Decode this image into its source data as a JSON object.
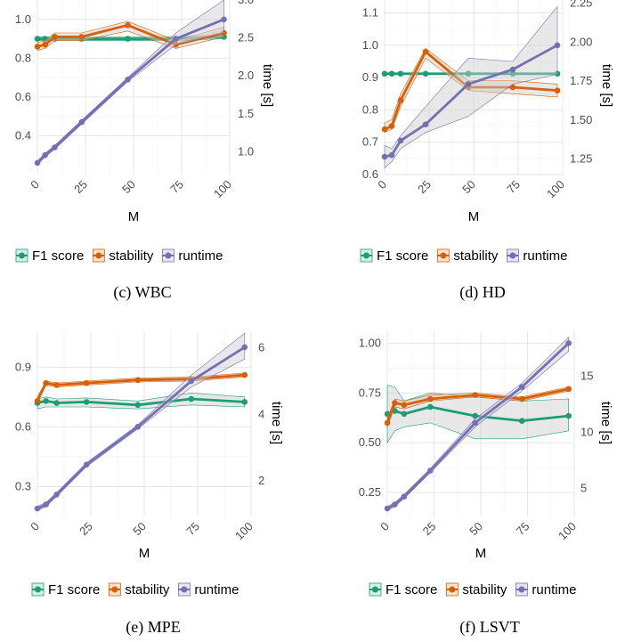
{
  "colors": {
    "f1": "#1b9e77",
    "stability": "#d95f02",
    "runtime": "#7570b3",
    "grid_major": "#e6e6e6",
    "grid_minor": "#f2f2f2",
    "band_fill": "#cccccc"
  },
  "chart_data": [
    {
      "type": "line",
      "caption": "(c) WBC",
      "xlabel": "M",
      "ylabel_right": "time [s]",
      "x_ticks": [
        0,
        25,
        50,
        75,
        100
      ],
      "y_left_ticks": [
        0.4,
        0.6,
        0.8,
        1.0
      ],
      "y_left_tick_labels": [
        "0.4",
        "0.6",
        "0.8",
        "1.0"
      ],
      "y_right_ticks": [
        1.0,
        1.5,
        2.0,
        2.5,
        3.0
      ],
      "y_right_tick_labels": [
        "1.0",
        "1.5",
        "2.0",
        "2.5",
        "3.0"
      ],
      "ylim_left": [
        0.2,
        1.1
      ],
      "ylim_right": [
        0.7,
        3.0
      ],
      "xlim": [
        0,
        100
      ],
      "x": [
        0,
        4,
        9,
        23,
        47,
        72,
        97
      ],
      "series": [
        {
          "name": "F1 score",
          "key": "f1",
          "values": [
            0.9,
            0.9,
            0.9,
            0.9,
            0.9,
            0.9,
            0.91
          ],
          "lower": [
            0.89,
            0.89,
            0.89,
            0.89,
            0.89,
            0.89,
            0.9
          ],
          "upper": [
            0.91,
            0.91,
            0.91,
            0.91,
            0.91,
            0.91,
            0.92
          ]
        },
        {
          "name": "stability",
          "key": "stability",
          "values": [
            0.86,
            0.87,
            0.91,
            0.91,
            0.97,
            0.87,
            0.93
          ],
          "lower": [
            0.84,
            0.85,
            0.89,
            0.89,
            0.94,
            0.85,
            0.91
          ],
          "upper": [
            0.88,
            0.89,
            0.93,
            0.93,
            0.99,
            0.89,
            0.96
          ]
        },
        {
          "name": "runtime",
          "key": "runtime",
          "values": [
            0.26,
            0.3,
            0.34,
            0.47,
            0.69,
            0.9,
            1.0
          ],
          "lower": [
            0.25,
            0.29,
            0.33,
            0.46,
            0.68,
            0.87,
            0.93
          ],
          "upper": [
            0.27,
            0.31,
            0.35,
            0.48,
            0.7,
            0.93,
            1.1
          ]
        }
      ]
    },
    {
      "type": "line",
      "caption": "(d) HD",
      "xlabel": "M",
      "ylabel_right": "time [s]",
      "x_ticks": [
        0,
        25,
        50,
        75,
        100
      ],
      "y_left_ticks": [
        0.6,
        0.7,
        0.8,
        0.9,
        1.0,
        1.1
      ],
      "y_left_tick_labels": [
        "0.6",
        "0.7",
        "0.8",
        "0.9",
        "1.0",
        "1.1"
      ],
      "y_right_ticks": [
        1.25,
        1.5,
        1.75,
        2.0,
        2.25
      ],
      "y_right_tick_labels": [
        "1.25",
        "1.50",
        "1.75",
        "2.00",
        "2.25"
      ],
      "ylim_left": [
        0.6,
        1.14
      ],
      "ylim_right": [
        1.15,
        2.27
      ],
      "xlim": [
        0,
        100
      ],
      "x": [
        0,
        4,
        9,
        23,
        47,
        72,
        97
      ],
      "series": [
        {
          "name": "F1 score",
          "key": "f1",
          "values": [
            0.912,
            0.912,
            0.912,
            0.912,
            0.912,
            0.912,
            0.912
          ],
          "lower": [
            0.911,
            0.911,
            0.911,
            0.911,
            0.911,
            0.911,
            0.911
          ],
          "upper": [
            0.913,
            0.913,
            0.913,
            0.913,
            0.913,
            0.913,
            0.913
          ]
        },
        {
          "name": "stability",
          "key": "stability",
          "values": [
            0.74,
            0.75,
            0.83,
            0.98,
            0.87,
            0.87,
            0.86
          ],
          "lower": [
            0.73,
            0.74,
            0.81,
            0.96,
            0.86,
            0.85,
            0.84
          ],
          "upper": [
            0.76,
            0.77,
            0.85,
            0.99,
            0.89,
            0.89,
            0.88
          ]
        },
        {
          "name": "runtime",
          "key": "runtime",
          "values": [
            0.655,
            0.66,
            0.705,
            0.755,
            0.88,
            0.925,
            1.0
          ],
          "lower": [
            0.62,
            0.64,
            0.68,
            0.73,
            0.78,
            0.88,
            0.91
          ],
          "upper": [
            0.69,
            0.68,
            0.72,
            0.81,
            0.96,
            0.95,
            1.12
          ]
        }
      ]
    },
    {
      "type": "line",
      "caption": "(e) MPE",
      "xlabel": "M",
      "ylabel_right": "time [s]",
      "x_ticks": [
        0,
        25,
        50,
        75,
        100
      ],
      "y_left_ticks": [
        0.3,
        0.6,
        0.9
      ],
      "y_left_tick_labels": [
        "0.3",
        "0.6",
        "0.9"
      ],
      "y_right_ticks": [
        2,
        4,
        6
      ],
      "y_right_tick_labels": [
        "2",
        "4",
        "6"
      ],
      "ylim_left": [
        0.15,
        1.08
      ],
      "ylim_right": [
        0.93,
        6.5
      ],
      "xlim": [
        0,
        100
      ],
      "x": [
        0,
        4,
        9,
        23,
        47,
        72,
        97
      ],
      "series": [
        {
          "name": "F1 score",
          "key": "f1",
          "values": [
            0.72,
            0.73,
            0.72,
            0.725,
            0.71,
            0.74,
            0.725
          ],
          "lower": [
            0.69,
            0.7,
            0.7,
            0.7,
            0.69,
            0.71,
            0.7
          ],
          "upper": [
            0.74,
            0.75,
            0.74,
            0.745,
            0.73,
            0.77,
            0.75
          ]
        },
        {
          "name": "stability",
          "key": "stability",
          "values": [
            0.73,
            0.82,
            0.81,
            0.82,
            0.835,
            0.84,
            0.86
          ],
          "lower": [
            0.72,
            0.81,
            0.8,
            0.81,
            0.825,
            0.83,
            0.85
          ],
          "upper": [
            0.75,
            0.83,
            0.82,
            0.83,
            0.845,
            0.85,
            0.87
          ]
        },
        {
          "name": "runtime",
          "key": "runtime",
          "values": [
            0.19,
            0.21,
            0.26,
            0.41,
            0.6,
            0.83,
            1.0
          ],
          "lower": [
            0.18,
            0.2,
            0.25,
            0.4,
            0.59,
            0.8,
            0.94
          ],
          "upper": [
            0.2,
            0.22,
            0.27,
            0.42,
            0.61,
            0.86,
            1.07
          ]
        }
      ]
    },
    {
      "type": "line",
      "caption": "(f) LSVT",
      "xlabel": "M",
      "ylabel_right": "time [s]",
      "x_ticks": [
        0,
        25,
        50,
        75,
        100
      ],
      "y_left_ticks": [
        0.25,
        0.5,
        0.75,
        1.0
      ],
      "y_left_tick_labels": [
        "0.25",
        "0.50",
        "0.75",
        "1.00"
      ],
      "y_right_ticks": [
        5,
        10,
        15
      ],
      "y_right_tick_labels": [
        "5",
        "10",
        "15"
      ],
      "ylim_left": [
        0.13,
        1.06
      ],
      "ylim_right": [
        2.5,
        19.0
      ],
      "xlim": [
        0,
        100
      ],
      "x": [
        0,
        4,
        9,
        23,
        47,
        72,
        97
      ],
      "series": [
        {
          "name": "F1 score",
          "key": "f1",
          "values": [
            0.645,
            0.66,
            0.645,
            0.68,
            0.635,
            0.61,
            0.635
          ],
          "lower": [
            0.5,
            0.56,
            0.58,
            0.6,
            0.52,
            0.52,
            0.56
          ],
          "upper": [
            0.79,
            0.78,
            0.71,
            0.75,
            0.73,
            0.71,
            0.72
          ]
        },
        {
          "name": "stability",
          "key": "stability",
          "values": [
            0.6,
            0.7,
            0.69,
            0.72,
            0.74,
            0.72,
            0.77
          ],
          "lower": [
            0.58,
            0.68,
            0.67,
            0.71,
            0.73,
            0.71,
            0.76
          ],
          "upper": [
            0.62,
            0.72,
            0.71,
            0.74,
            0.75,
            0.73,
            0.78
          ]
        },
        {
          "name": "runtime",
          "key": "runtime",
          "values": [
            0.17,
            0.19,
            0.23,
            0.36,
            0.6,
            0.78,
            1.0
          ],
          "lower": [
            0.16,
            0.18,
            0.22,
            0.35,
            0.58,
            0.76,
            0.96
          ],
          "upper": [
            0.18,
            0.2,
            0.24,
            0.37,
            0.62,
            0.8,
            1.03
          ]
        }
      ]
    }
  ]
}
